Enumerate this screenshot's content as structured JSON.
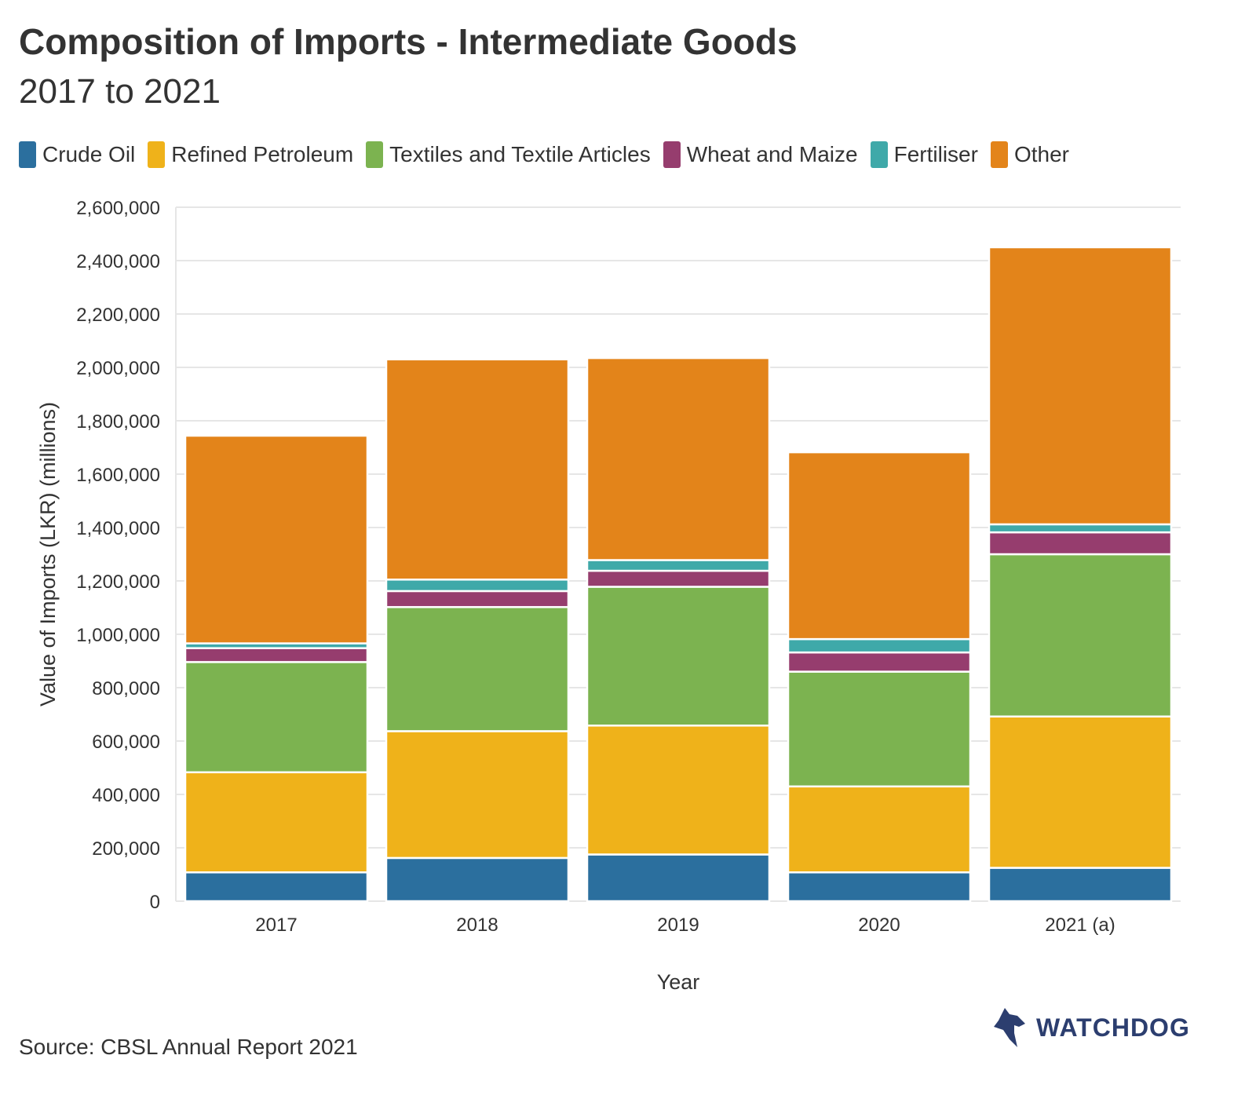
{
  "chart_data": {
    "type": "bar",
    "stacked": true,
    "title": "Composition of Imports - Intermediate Goods",
    "subtitle": "2017 to 2021",
    "xlabel": "Year",
    "ylabel": "Value of Imports (LKR) (millions)",
    "ylim": [
      0,
      2600000
    ],
    "yticks": [
      0,
      200000,
      400000,
      600000,
      800000,
      1000000,
      1200000,
      1400000,
      1600000,
      1800000,
      2000000,
      2200000,
      2400000,
      2600000
    ],
    "ytick_labels": [
      "0",
      "200,000",
      "400,000",
      "600,000",
      "800,000",
      "1,000,000",
      "1,200,000",
      "1,400,000",
      "1,600,000",
      "1,800,000",
      "2,000,000",
      "2,200,000",
      "2,400,000",
      "2,600,000"
    ],
    "categories": [
      "2017",
      "2018",
      "2019",
      "2020",
      "2021 (a)"
    ],
    "grid": true,
    "legend_position": "top-left",
    "series": [
      {
        "name": "Crude Oil",
        "color": "#2b6f9e",
        "values": [
          108000,
          162000,
          175000,
          108000,
          125000
        ]
      },
      {
        "name": "Refined Petroleum",
        "color": "#efb21a",
        "values": [
          375000,
          475000,
          483000,
          322000,
          567000
        ]
      },
      {
        "name": "Textiles and Textile Articles",
        "color": "#7cb350",
        "values": [
          413000,
          465000,
          520000,
          430000,
          608000
        ]
      },
      {
        "name": "Wheat and Maize",
        "color": "#963d6e",
        "values": [
          52000,
          60000,
          60000,
          72000,
          82000
        ]
      },
      {
        "name": "Fertiliser",
        "color": "#3fa9a9",
        "values": [
          18000,
          43000,
          40000,
          50000,
          30000
        ]
      },
      {
        "name": "Other",
        "color": "#e3841a",
        "values": [
          778000,
          825000,
          757000,
          700000,
          1038000
        ]
      }
    ]
  },
  "footer": {
    "source": "Source: CBSL Annual Report 2021",
    "brand": "WATCHDOG",
    "brand_logo_icon": "dog-head-icon"
  }
}
